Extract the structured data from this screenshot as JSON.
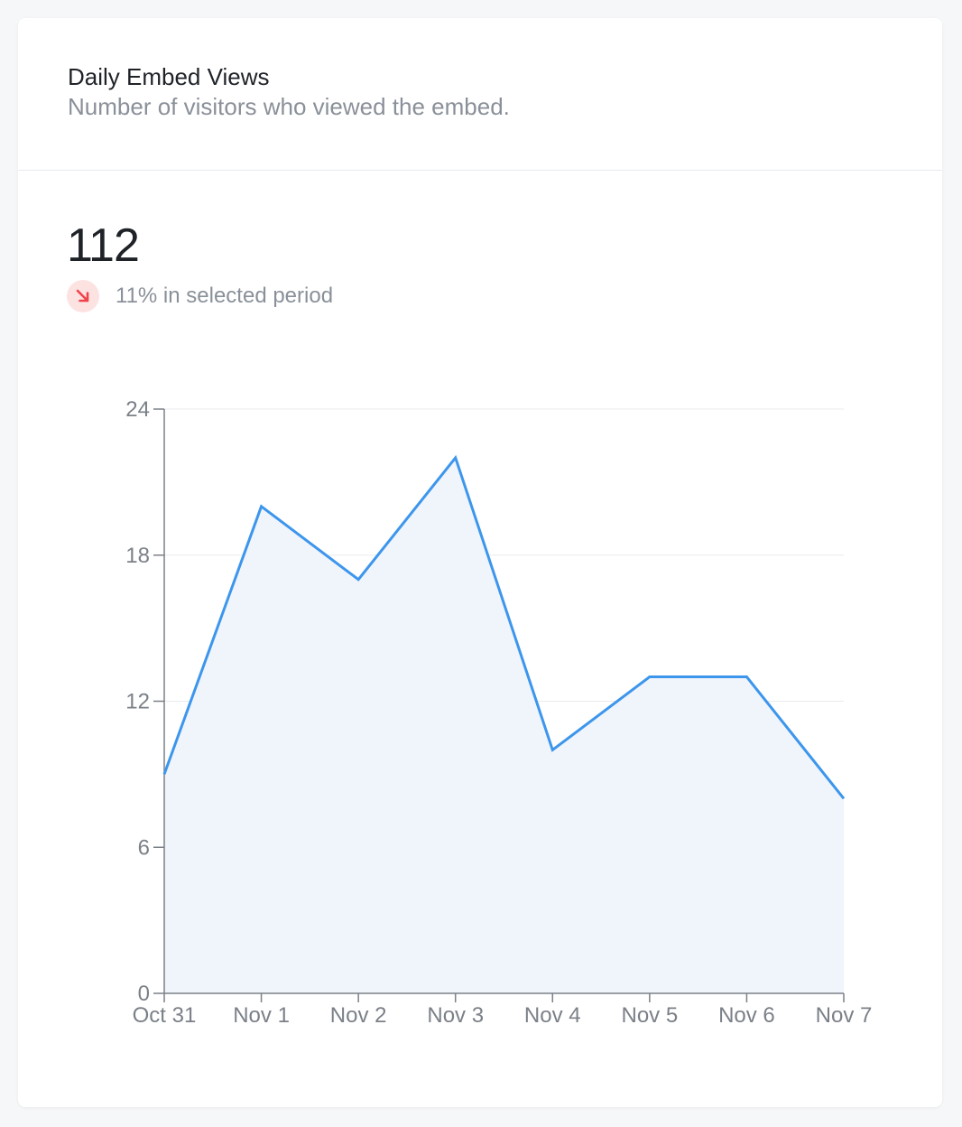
{
  "card": {
    "title": "Daily Embed Views",
    "subtitle": "Number of visitors who viewed the embed."
  },
  "stat": {
    "value": "112",
    "change_text": "11% in selected period",
    "trend": "down",
    "trend_icon": "arrow-down-right-icon",
    "trend_color": "#f0444b",
    "trend_bg": "#fde2e2"
  },
  "colors": {
    "line": "#3d96ec",
    "area": "#f0f5fc",
    "grid": "#e9ebee",
    "axis": "#7b8088"
  },
  "chart_data": {
    "type": "area",
    "title": "",
    "xlabel": "",
    "ylabel": "",
    "categories": [
      "Oct 31",
      "Nov 1",
      "Nov 2",
      "Nov 3",
      "Nov 4",
      "Nov 5",
      "Nov 6",
      "Nov 7"
    ],
    "values": [
      9,
      20,
      17,
      22,
      10,
      13,
      13,
      8
    ],
    "y_ticks": [
      0,
      6,
      12,
      18,
      24
    ],
    "ylim": [
      0,
      24
    ],
    "grid": "horizontal",
    "legend": "none"
  }
}
